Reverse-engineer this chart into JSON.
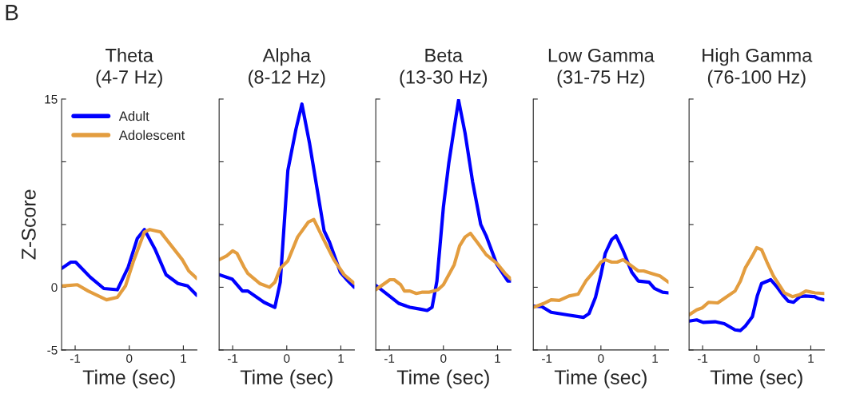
{
  "chart_data": [
    {
      "type": "line",
      "title": "Theta\n(4-7 Hz)",
      "xlabel": "Time (sec)",
      "ylabel": "Z-Score",
      "annotations": [
        "B"
      ],
      "xlim": [
        -1.25,
        1.25
      ],
      "xticks": [
        -1,
        0,
        1
      ],
      "ylim": [
        -5,
        15
      ],
      "yticks": [
        -5,
        0,
        {
          "value": 5,
          "label": null
        },
        {
          "value": 10,
          "label": null
        },
        15
      ],
      "legend": "top left",
      "grid": false,
      "line_style": "solid",
      "series": [
        {
          "name": "Adult",
          "color": "#0000ff",
          "x": [
            -1.25,
            -1.08,
            -0.99,
            -0.72,
            -0.47,
            -0.22,
            -0.02,
            0.15,
            0.28,
            0.48,
            0.68,
            0.9,
            1.08,
            1.25
          ],
          "values": [
            1.5,
            2.0,
            2.0,
            0.8,
            -0.1,
            -0.2,
            1.6,
            3.9,
            4.6,
            3.0,
            1.0,
            0.3,
            0.1,
            -0.65
          ]
        },
        {
          "name": "Adolescent",
          "color": "#e39d3f",
          "x": [
            -1.25,
            -0.96,
            -0.76,
            -0.42,
            -0.22,
            -0.07,
            0.08,
            0.28,
            0.38,
            0.58,
            0.78,
            0.98,
            1.1,
            1.25
          ],
          "values": [
            0.1,
            0.2,
            -0.3,
            -1.0,
            -0.8,
            0.1,
            2.1,
            4.4,
            4.6,
            4.4,
            3.3,
            2.2,
            1.3,
            0.7
          ]
        }
      ]
    },
    {
      "type": "line",
      "title": "Alpha\n(8-12 Hz)",
      "xlabel": "Time (sec)",
      "xlim": [
        -1.25,
        1.25
      ],
      "xticks": [
        -1,
        0,
        1
      ],
      "ylim": [
        -5,
        15
      ],
      "yticks": [
        -5,
        0,
        5,
        10,
        15
      ],
      "tick_labels": "x",
      "grid": false,
      "line_style": "solid",
      "series": [
        {
          "color": "#0000ff",
          "x": [
            -1.25,
            -1.01,
            -0.82,
            -0.72,
            -0.42,
            -0.22,
            -0.12,
            0.02,
            0.17,
            0.28,
            0.42,
            0.57,
            0.69,
            0.79,
            0.99,
            1.11,
            1.25
          ],
          "values": [
            1.0,
            0.65,
            -0.3,
            -0.3,
            -1.2,
            -1.6,
            0.4,
            9.3,
            12.6,
            14.6,
            11.5,
            7.6,
            4.5,
            3.6,
            1.2,
            0.6,
            0.0
          ]
        },
        {
          "color": "#e39d3f",
          "x": [
            -1.25,
            -1.11,
            -1.0,
            -0.92,
            -0.79,
            -0.72,
            -0.5,
            -0.32,
            -0.22,
            -0.12,
            0.02,
            0.2,
            0.4,
            0.5,
            0.67,
            0.87,
            1.06,
            1.25
          ],
          "values": [
            2.2,
            2.5,
            2.9,
            2.7,
            1.6,
            1.1,
            0.3,
            0.0,
            0.4,
            1.5,
            2.1,
            4.0,
            5.2,
            5.4,
            3.9,
            2.2,
            1.0,
            0.3
          ]
        }
      ]
    },
    {
      "type": "line",
      "title": "Beta\n(13-30 Hz)",
      "xlabel": "Time (sec)",
      "xlim": [
        -1.25,
        1.25
      ],
      "xticks": [
        -1,
        0,
        1
      ],
      "ylim": [
        -5,
        15
      ],
      "yticks": [
        -5,
        0,
        5,
        10,
        15
      ],
      "tick_labels": "x",
      "grid": false,
      "line_style": "solid",
      "series": [
        {
          "color": "#0000ff",
          "x": [
            -1.25,
            -1.04,
            -0.82,
            -0.62,
            -0.42,
            -0.3,
            -0.21,
            -0.12,
            0.0,
            0.1,
            0.2,
            0.28,
            0.4,
            0.54,
            0.69,
            0.79,
            0.99,
            1.19,
            1.25
          ],
          "values": [
            0.15,
            -0.55,
            -1.3,
            -1.6,
            -1.75,
            -1.85,
            -1.6,
            0.5,
            6.4,
            9.9,
            12.7,
            14.9,
            12.3,
            8.4,
            5.0,
            4.1,
            1.8,
            0.5,
            0.5
          ]
        },
        {
          "color": "#e39d3f",
          "x": [
            -1.25,
            -0.99,
            -0.91,
            -0.79,
            -0.72,
            -0.62,
            -0.5,
            -0.4,
            -0.27,
            -0.1,
            0.0,
            0.2,
            0.3,
            0.4,
            0.5,
            0.64,
            0.79,
            0.99,
            1.14,
            1.25
          ],
          "values": [
            -0.2,
            0.6,
            0.6,
            0.2,
            -0.3,
            -0.3,
            -0.5,
            -0.4,
            -0.4,
            -0.2,
            0.2,
            1.8,
            3.3,
            4.0,
            4.3,
            3.5,
            2.6,
            1.9,
            1.1,
            0.65
          ]
        }
      ]
    },
    {
      "type": "line",
      "title": "Low Gamma\n(31-75 Hz)",
      "xlabel": "Time (sec)",
      "xlim": [
        -1.25,
        1.25
      ],
      "xticks": [
        -1,
        0,
        1
      ],
      "ylim": [
        -5,
        15
      ],
      "yticks": [
        -5,
        0,
        5,
        10,
        15
      ],
      "tick_labels": "x",
      "grid": false,
      "line_style": "solid",
      "series": [
        {
          "color": "#0000ff",
          "x": [
            -1.25,
            -1.09,
            -0.92,
            -0.62,
            -0.32,
            -0.22,
            -0.1,
            0.0,
            0.08,
            0.2,
            0.28,
            0.4,
            0.57,
            0.69,
            0.89,
            0.99,
            1.14,
            1.25
          ],
          "values": [
            -1.5,
            -1.55,
            -2.0,
            -2.2,
            -2.4,
            -2.1,
            -0.8,
            1.0,
            2.7,
            3.8,
            4.1,
            3.0,
            1.2,
            0.5,
            0.4,
            -0.1,
            -0.4,
            -0.45
          ]
        },
        {
          "color": "#e39d3f",
          "x": [
            -1.25,
            -1.06,
            -0.92,
            -0.77,
            -0.59,
            -0.42,
            -0.27,
            -0.12,
            0.0,
            0.08,
            0.2,
            0.3,
            0.41,
            0.52,
            0.69,
            0.79,
            0.94,
            1.09,
            1.25
          ],
          "values": [
            -1.6,
            -1.3,
            -1.0,
            -1.05,
            -0.7,
            -0.55,
            0.55,
            1.3,
            2.0,
            2.2,
            2.0,
            2.0,
            2.2,
            1.85,
            1.3,
            1.3,
            1.1,
            0.9,
            0.4
          ]
        }
      ]
    },
    {
      "type": "line",
      "title": "High Gamma\n(76-100 Hz)",
      "xlabel": "Time (sec)",
      "xlim": [
        -1.25,
        1.25
      ],
      "xticks": [
        -1,
        0,
        1
      ],
      "ylim": [
        -5,
        15
      ],
      "yticks": [
        -5,
        0,
        5,
        10,
        15
      ],
      "tick_labels": "x",
      "grid": false,
      "line_style": "solid",
      "series": [
        {
          "color": "#0000ff",
          "x": [
            -1.25,
            -1.11,
            -0.99,
            -0.77,
            -0.6,
            -0.4,
            -0.3,
            -0.21,
            -0.08,
            0.01,
            0.09,
            0.26,
            0.38,
            0.48,
            0.58,
            0.68,
            0.8,
            0.9,
            1.07,
            1.14,
            1.24
          ],
          "values": [
            -2.7,
            -2.6,
            -2.8,
            -2.75,
            -2.9,
            -3.4,
            -3.45,
            -3.1,
            -2.35,
            -0.7,
            0.3,
            0.6,
            0.0,
            -0.6,
            -1.1,
            -1.2,
            -0.75,
            -0.7,
            -0.75,
            -0.9,
            -1.0
          ]
        },
        {
          "color": "#e39d3f",
          "x": [
            -1.25,
            -1.11,
            -1.01,
            -0.89,
            -0.72,
            -0.57,
            -0.4,
            -0.3,
            -0.21,
            -0.08,
            0.0,
            0.09,
            0.19,
            0.31,
            0.51,
            0.66,
            0.79,
            0.91,
            1.08,
            1.25
          ],
          "values": [
            -2.2,
            -1.8,
            -1.65,
            -1.2,
            -1.25,
            -0.8,
            -0.3,
            0.5,
            1.55,
            2.5,
            3.15,
            3.0,
            2.0,
            0.9,
            -0.45,
            -0.75,
            -0.6,
            -0.3,
            -0.45,
            -0.5
          ]
        }
      ]
    }
  ]
}
